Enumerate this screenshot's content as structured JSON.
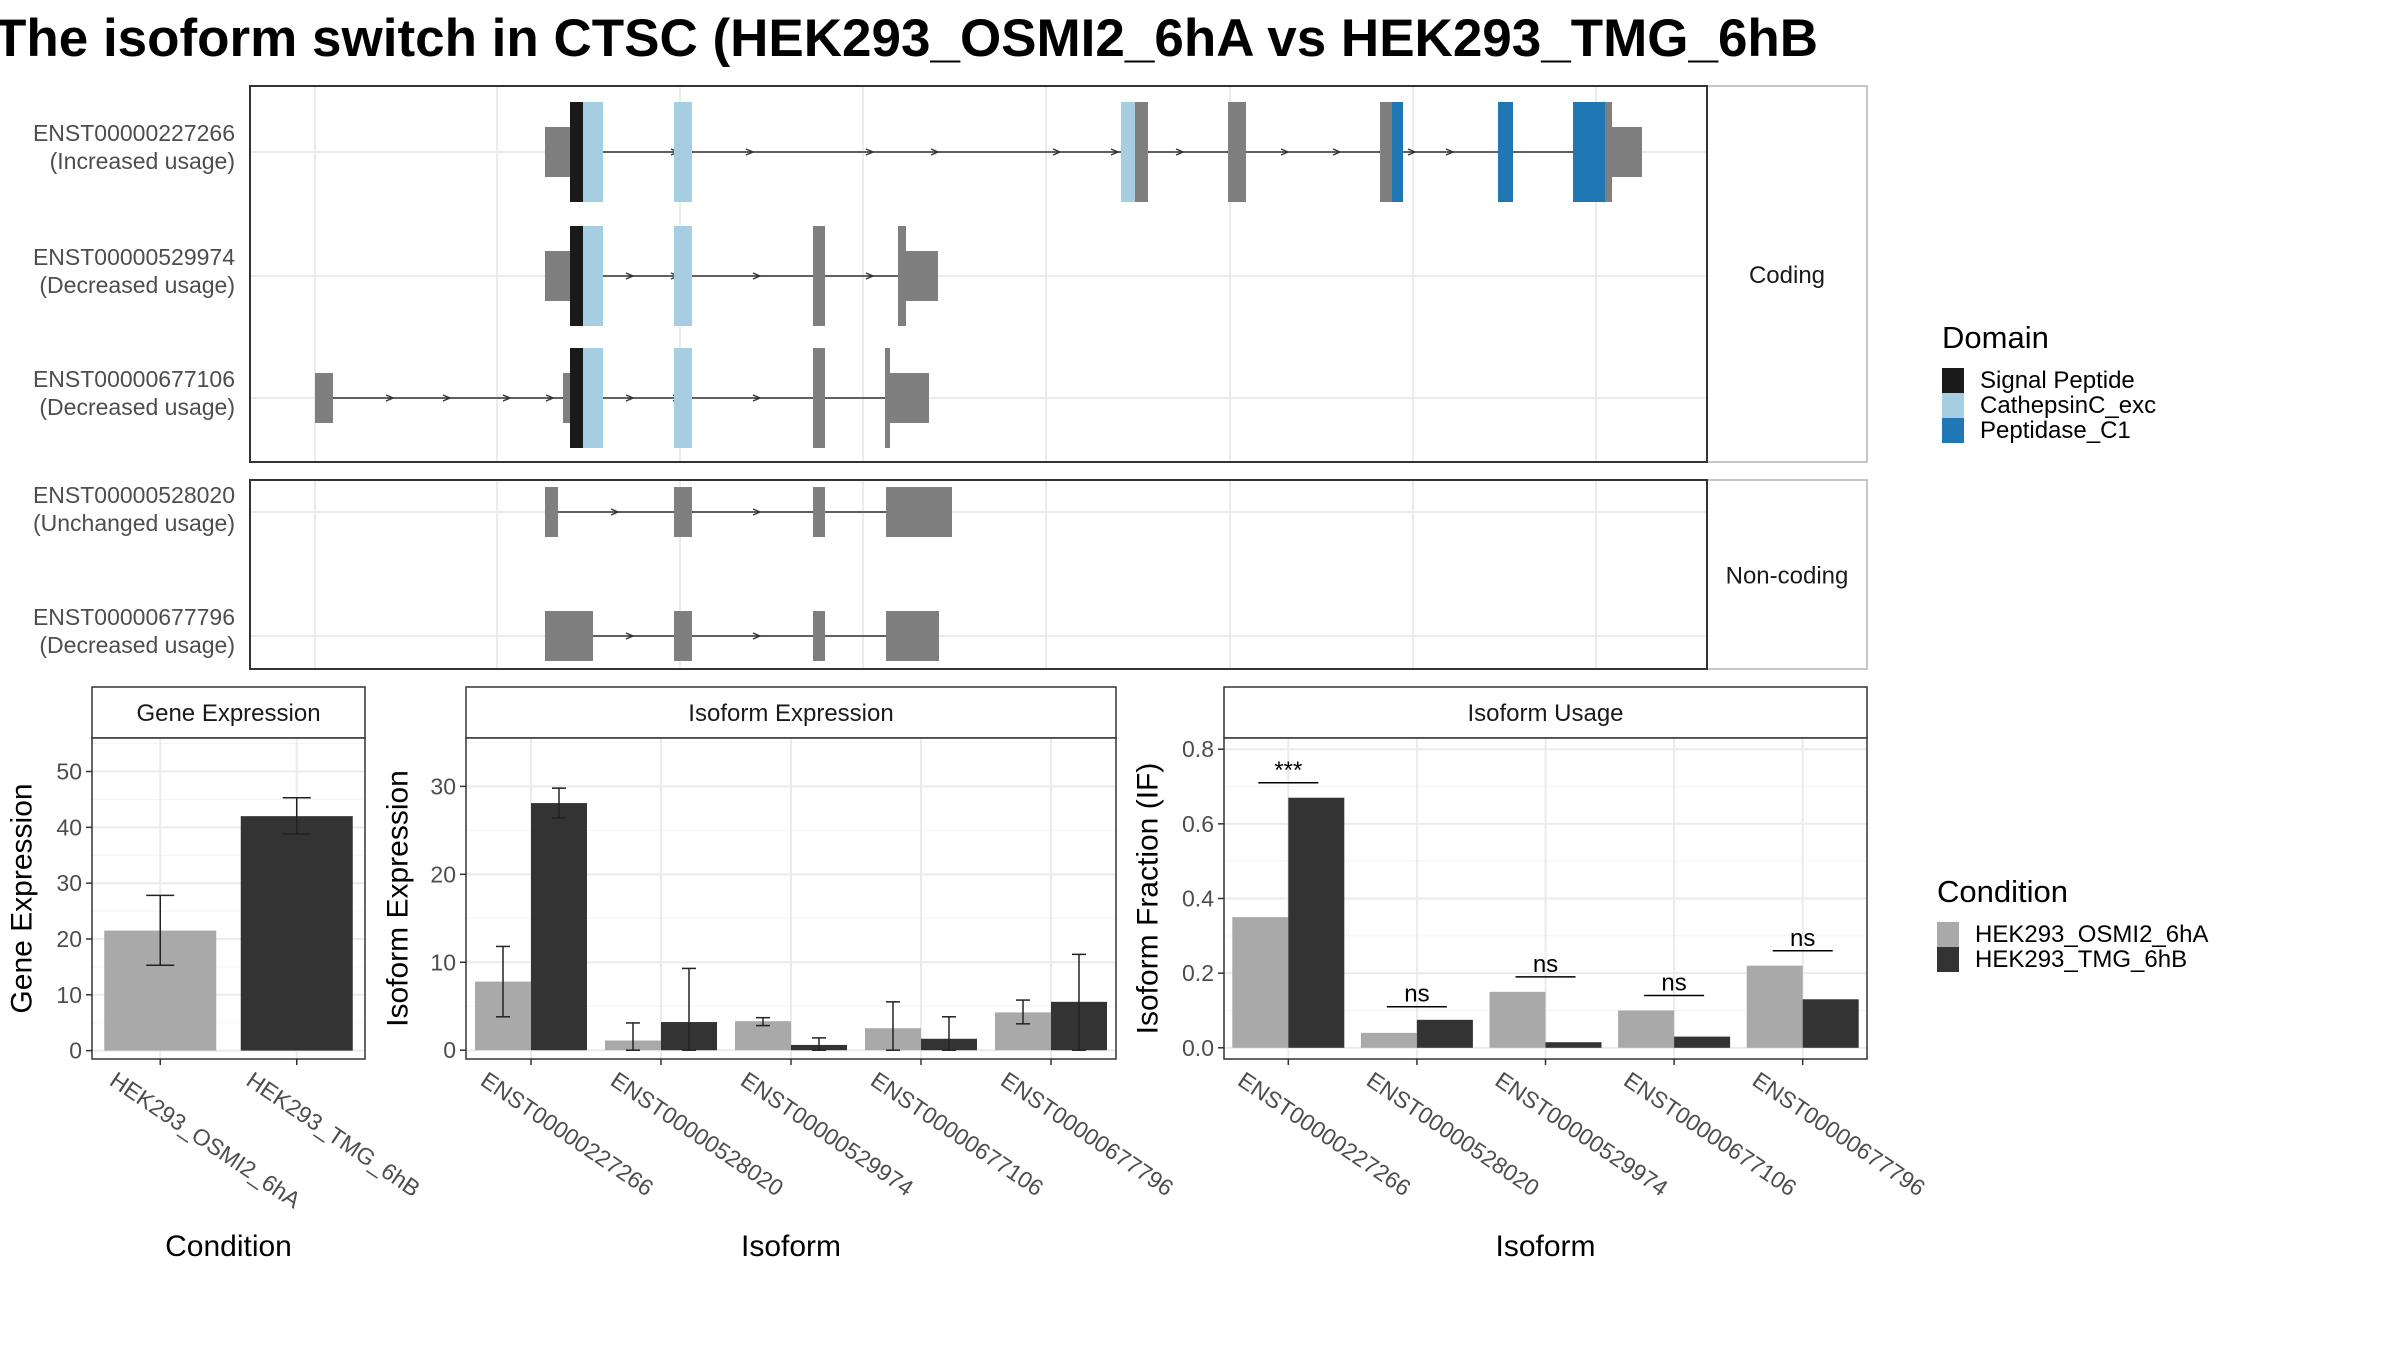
{
  "title": "The isoform switch in CTSC (HEK293_OSMI2_6hA vs HEK293_TMG_6hB",
  "colors": {
    "exon": "#7f7f7f",
    "signal_peptide": "#1a1a1a",
    "cathepsin": "#a6cee3",
    "peptidase": "#1f78b4",
    "cond_a": "#a9a9a9",
    "cond_b": "#333333"
  },
  "structure": {
    "coding_label": "Coding",
    "noncoding_label": "Non-coding",
    "coding": [
      {
        "id": "ENST00000227266",
        "usage": "(Increased usage)"
      },
      {
        "id": "ENST00000529974",
        "usage": "(Decreased usage)"
      },
      {
        "id": "ENST00000677106",
        "usage": "(Decreased usage)"
      }
    ],
    "noncoding": [
      {
        "id": "ENST00000528020",
        "usage": "(Unchanged usage)"
      },
      {
        "id": "ENST00000677796",
        "usage": "(Decreased usage)"
      }
    ]
  },
  "legend_domain": {
    "title": "Domain",
    "items": [
      {
        "label": "Signal Peptide",
        "color": "#1a1a1a"
      },
      {
        "label": "CathepsinC_exc",
        "color": "#a6cee3"
      },
      {
        "label": "Peptidase_C1",
        "color": "#1f78b4"
      }
    ]
  },
  "legend_condition": {
    "title": "Condition",
    "items": [
      {
        "label": "HEK293_OSMI2_6hA",
        "color": "#a9a9a9"
      },
      {
        "label": "HEK293_TMG_6hB",
        "color": "#333333"
      }
    ]
  },
  "chart_data": [
    {
      "type": "bar",
      "title": "Gene Expression",
      "xlabel": "Condition",
      "ylabel": "Gene Expression",
      "ylim": [
        -1.5,
        56
      ],
      "yticks": [
        0,
        10,
        20,
        30,
        40,
        50
      ],
      "categories": [
        "HEK293_OSMI2_6hA",
        "HEK293_TMG_6hB"
      ],
      "values": [
        21.5,
        42
      ],
      "errors": [
        [
          15.3,
          27.8
        ],
        [
          38.8,
          45.3
        ]
      ]
    },
    {
      "type": "bar",
      "title": "Isoform Expression",
      "xlabel": "Isoform",
      "ylabel": "Isoform Expression",
      "ylim": [
        -1,
        35.5
      ],
      "yticks": [
        0,
        10,
        20,
        30
      ],
      "categories": [
        "ENST00000227266",
        "ENST00000528020",
        "ENST00000529974",
        "ENST00000677106",
        "ENST00000677796"
      ],
      "series": [
        {
          "name": "HEK293_OSMI2_6hA",
          "values": [
            7.8,
            1.1,
            3.3,
            2.5,
            4.3
          ],
          "errors": [
            [
              3.8,
              11.8
            ],
            [
              0,
              3.1
            ],
            [
              2.8,
              3.7
            ],
            [
              0,
              5.5
            ],
            [
              3.0,
              5.7
            ]
          ]
        },
        {
          "name": "HEK293_TMG_6hB",
          "values": [
            28.1,
            3.2,
            0.6,
            1.3,
            5.5
          ],
          "errors": [
            [
              26.4,
              29.8
            ],
            [
              0,
              9.3
            ],
            [
              0,
              1.4
            ],
            [
              0,
              3.8
            ],
            [
              0,
              10.9
            ]
          ]
        }
      ]
    },
    {
      "type": "bar",
      "title": "Isoform Usage",
      "xlabel": "Isoform",
      "ylabel": "Isoform Fraction (IF)",
      "ylim": [
        -0.03,
        0.83
      ],
      "yticks": [
        0.0,
        0.2,
        0.4,
        0.6,
        0.8
      ],
      "categories": [
        "ENST00000227266",
        "ENST00000528020",
        "ENST00000529974",
        "ENST00000677106",
        "ENST00000677796"
      ],
      "series": [
        {
          "name": "HEK293_OSMI2_6hA",
          "values": [
            0.35,
            0.04,
            0.15,
            0.1,
            0.22
          ]
        },
        {
          "name": "HEK293_TMG_6hB",
          "values": [
            0.67,
            0.075,
            0.015,
            0.03,
            0.13
          ]
        }
      ],
      "significance": [
        "***",
        "ns",
        "ns",
        "ns",
        "ns"
      ],
      "significance_y": [
        0.71,
        0.11,
        0.19,
        0.14,
        0.26
      ]
    }
  ]
}
